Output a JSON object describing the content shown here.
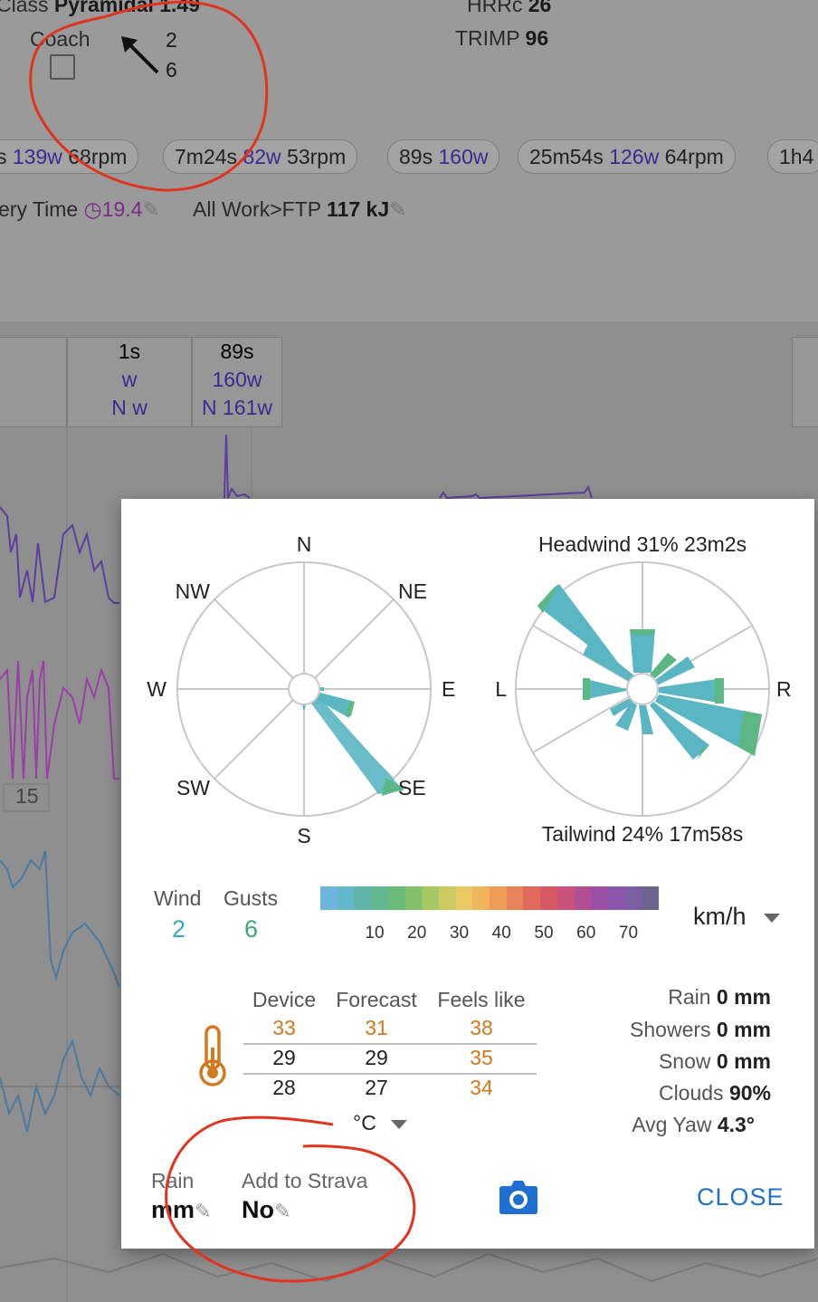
{
  "background": {
    "class_label": "Class",
    "class_value": "Pyramidal 1.49",
    "hrrc_label": "HRRc",
    "hrrc_value": "26",
    "coach_label": "Coach",
    "wind_arrow_values": [
      "2",
      "6"
    ],
    "trimp_label": "TRIMP",
    "trimp_value": "96",
    "intervals": [
      {
        "duration": "s",
        "power": "139w",
        "cadence": "68rpm"
      },
      {
        "duration": "7m24s",
        "power": "82w",
        "cadence": "53rpm"
      },
      {
        "duration": "89s",
        "power": "160w",
        "cadence": ""
      },
      {
        "duration": "25m54s",
        "power": "126w",
        "cadence": "64rpm"
      },
      {
        "duration": "1h4",
        "power": "",
        "cadence": ""
      }
    ],
    "recovery_label": "ery Time",
    "recovery_value": "19.4",
    "allwork_label": "All Work>FTP",
    "allwork_value": "117 kJ",
    "col_headers": [
      {
        "dur": "1s",
        "p1": "w",
        "p2": "N w"
      },
      {
        "dur": "89s",
        "p1": "160w",
        "p2": "N 161w"
      }
    ],
    "axis_tick": "15"
  },
  "dialog": {
    "compass": {
      "N": "N",
      "NE": "NE",
      "E": "E",
      "SE": "SE",
      "S": "S",
      "SW": "SW",
      "W": "W",
      "NW": "NW"
    },
    "relative": {
      "headwind": "Headwind 31% 23m2s",
      "tailwind": "Tailwind 24% 17m58s",
      "left": "L",
      "right": "R"
    },
    "wind_label": "Wind",
    "wind_value": "2",
    "gusts_label": "Gusts",
    "gusts_value": "6",
    "scale_ticks": [
      "10",
      "20",
      "30",
      "40",
      "50",
      "60",
      "70"
    ],
    "scale_colors": [
      "#6cb6de",
      "#62b8c8",
      "#5fb5a8",
      "#62b88e",
      "#6bbb78",
      "#84c06a",
      "#a6c862",
      "#cbcb62",
      "#e8c860",
      "#f0b45c",
      "#ef9c58",
      "#e88258",
      "#df6a5c",
      "#d65a66",
      "#c9527a",
      "#b24e92",
      "#9a4ea4",
      "#8a56ac",
      "#7a5ea6",
      "#6e6490"
    ],
    "unit": "km/h",
    "temp_headers": [
      "Device",
      "Forecast",
      "Feels like"
    ],
    "temp_rows": [
      [
        "33",
        "31",
        "38"
      ],
      [
        "29",
        "29",
        "35"
      ],
      [
        "28",
        "27",
        "34"
      ]
    ],
    "temp_unit": "°C",
    "right_stats": [
      {
        "label": "Rain",
        "value": "0 mm"
      },
      {
        "label": "Showers",
        "value": "0 mm"
      },
      {
        "label": "Snow",
        "value": "0 mm"
      },
      {
        "label": "Clouds",
        "value": "90%"
      },
      {
        "label": "Avg Yaw",
        "value": "4.3°"
      }
    ],
    "rain_label": "Rain",
    "rain_value": "mm",
    "strava_label": "Add to Strava",
    "strava_value": "No",
    "close_label": "CLOSE"
  }
}
